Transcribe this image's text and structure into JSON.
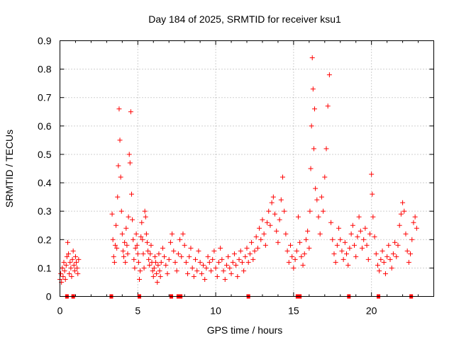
{
  "chart_data": {
    "type": "scatter",
    "title": "Day 184 of 2025, SRMTID for receiver ksu1",
    "xlabel": "GPS time / hours",
    "ylabel": "SRMTID / TECUs",
    "xlim": [
      0,
      24
    ],
    "ylim": [
      0,
      0.9
    ],
    "grid": true,
    "marker": "+",
    "color": "#ff0000",
    "x_ticks": [
      0,
      5,
      10,
      15,
      20
    ],
    "x_tick_labels": [
      "0",
      "5",
      "10",
      "15",
      "20"
    ],
    "y_ticks": [
      0,
      0.1,
      0.2,
      0.3,
      0.4,
      0.5,
      0.6,
      0.7,
      0.8,
      0.9
    ],
    "y_tick_labels": [
      "0",
      "0.1",
      "0.2",
      "0.3",
      "0.4",
      "0.5",
      "0.6",
      "0.7",
      "0.8",
      "0.9"
    ],
    "series": [
      {
        "name": "SRMTID",
        "points": [
          [
            0.0,
            0.06
          ],
          [
            0.05,
            0.08
          ],
          [
            0.1,
            0.05
          ],
          [
            0.15,
            0.1
          ],
          [
            0.2,
            0.07
          ],
          [
            0.25,
            0.12
          ],
          [
            0.3,
            0.09
          ],
          [
            0.35,
            0.06
          ],
          [
            0.4,
            0.11
          ],
          [
            0.45,
            0.14
          ],
          [
            0.5,
            0.19
          ],
          [
            0.55,
            0.15
          ],
          [
            0.6,
            0.08
          ],
          [
            0.65,
            0.12
          ],
          [
            0.7,
            0.1
          ],
          [
            0.75,
            0.07
          ],
          [
            0.8,
            0.13
          ],
          [
            0.85,
            0.16
          ],
          [
            0.9,
            0.11
          ],
          [
            0.95,
            0.09
          ],
          [
            1.0,
            0.14
          ],
          [
            1.05,
            0.12
          ],
          [
            1.1,
            0.1
          ],
          [
            1.15,
            0.08
          ],
          [
            1.2,
            0.13
          ],
          [
            3.35,
            0.29
          ],
          [
            3.4,
            0.2
          ],
          [
            3.45,
            0.14
          ],
          [
            3.5,
            0.12
          ],
          [
            3.55,
            0.18
          ],
          [
            3.6,
            0.25
          ],
          [
            3.65,
            0.17
          ],
          [
            3.7,
            0.35
          ],
          [
            3.75,
            0.46
          ],
          [
            3.8,
            0.66
          ],
          [
            3.85,
            0.55
          ],
          [
            3.9,
            0.42
          ],
          [
            3.95,
            0.3
          ],
          [
            4.0,
            0.22
          ],
          [
            4.05,
            0.16
          ],
          [
            4.1,
            0.14
          ],
          [
            4.15,
            0.19
          ],
          [
            4.2,
            0.12
          ],
          [
            4.25,
            0.24
          ],
          [
            4.3,
            0.18
          ],
          [
            4.35,
            0.15
          ],
          [
            4.4,
            0.28
          ],
          [
            4.45,
            0.5
          ],
          [
            4.5,
            0.47
          ],
          [
            4.55,
            0.65
          ],
          [
            4.6,
            0.36
          ],
          [
            4.65,
            0.27
          ],
          [
            4.7,
            0.2
          ],
          [
            4.75,
            0.13
          ],
          [
            4.8,
            0.1
          ],
          [
            4.85,
            0.17
          ],
          [
            4.9,
            0.22
          ],
          [
            4.95,
            0.18
          ],
          [
            5.0,
            0.15
          ],
          [
            5.05,
            0.12
          ],
          [
            5.1,
            0.06
          ],
          [
            5.15,
            0.09
          ],
          [
            5.2,
            0.21
          ],
          [
            5.25,
            0.26
          ],
          [
            5.3,
            0.2
          ],
          [
            5.35,
            0.15
          ],
          [
            5.4,
            0.1
          ],
          [
            5.45,
            0.3
          ],
          [
            5.5,
            0.28
          ],
          [
            5.55,
            0.22
          ],
          [
            5.6,
            0.19
          ],
          [
            5.65,
            0.16
          ],
          [
            5.7,
            0.13
          ],
          [
            5.75,
            0.11
          ],
          [
            5.8,
            0.15
          ],
          [
            5.85,
            0.18
          ],
          [
            5.9,
            0.12
          ],
          [
            5.95,
            0.09
          ],
          [
            6.0,
            0.07
          ],
          [
            6.05,
            0.1
          ],
          [
            6.1,
            0.14
          ],
          [
            6.15,
            0.12
          ],
          [
            6.2,
            0.08
          ],
          [
            6.25,
            0.05
          ],
          [
            6.3,
            0.11
          ],
          [
            6.35,
            0.15
          ],
          [
            6.4,
            0.09
          ],
          [
            6.45,
            0.07
          ],
          [
            6.5,
            0.12
          ],
          [
            6.6,
            0.17
          ],
          [
            6.7,
            0.14
          ],
          [
            6.8,
            0.11
          ],
          [
            6.9,
            0.08
          ],
          [
            7.0,
            0.13
          ],
          [
            7.1,
            0.19
          ],
          [
            7.2,
            0.22
          ],
          [
            7.3,
            0.16
          ],
          [
            7.4,
            0.12
          ],
          [
            7.5,
            0.09
          ],
          [
            7.6,
            0.15
          ],
          [
            7.7,
            0.2
          ],
          [
            7.8,
            0.14
          ],
          [
            7.9,
            0.22
          ],
          [
            8.0,
            0.18
          ],
          [
            8.1,
            0.12
          ],
          [
            8.2,
            0.08
          ],
          [
            8.3,
            0.14
          ],
          [
            8.4,
            0.17
          ],
          [
            8.5,
            0.1
          ],
          [
            8.6,
            0.07
          ],
          [
            8.7,
            0.13
          ],
          [
            8.8,
            0.09
          ],
          [
            8.9,
            0.16
          ],
          [
            9.0,
            0.12
          ],
          [
            9.1,
            0.08
          ],
          [
            9.2,
            0.11
          ],
          [
            9.3,
            0.06
          ],
          [
            9.4,
            0.1
          ],
          [
            9.5,
            0.14
          ],
          [
            9.6,
            0.12
          ],
          [
            9.7,
            0.09
          ],
          [
            9.8,
            0.13
          ],
          [
            9.9,
            0.16
          ],
          [
            10.0,
            0.1
          ],
          [
            10.1,
            0.07
          ],
          [
            10.2,
            0.12
          ],
          [
            10.3,
            0.17
          ],
          [
            10.4,
            0.13
          ],
          [
            10.5,
            0.09
          ],
          [
            10.6,
            0.06
          ],
          [
            10.7,
            0.11
          ],
          [
            10.8,
            0.14
          ],
          [
            10.9,
            0.1
          ],
          [
            11.0,
            0.08
          ],
          [
            11.1,
            0.12
          ],
          [
            11.2,
            0.15
          ],
          [
            11.3,
            0.11
          ],
          [
            11.4,
            0.07
          ],
          [
            11.5,
            0.13
          ],
          [
            11.6,
            0.16
          ],
          [
            11.7,
            0.12
          ],
          [
            11.8,
            0.09
          ],
          [
            11.9,
            0.14
          ],
          [
            12.0,
            0.17
          ],
          [
            12.1,
            0.12
          ],
          [
            12.2,
            0.15
          ],
          [
            12.3,
            0.19
          ],
          [
            12.4,
            0.13
          ],
          [
            12.5,
            0.16
          ],
          [
            12.6,
            0.21
          ],
          [
            12.7,
            0.17
          ],
          [
            12.8,
            0.24
          ],
          [
            12.9,
            0.2
          ],
          [
            13.0,
            0.27
          ],
          [
            13.1,
            0.22
          ],
          [
            13.2,
            0.18
          ],
          [
            13.3,
            0.26
          ],
          [
            13.4,
            0.3
          ],
          [
            13.5,
            0.25
          ],
          [
            13.6,
            0.33
          ],
          [
            13.7,
            0.35
          ],
          [
            13.8,
            0.29
          ],
          [
            13.9,
            0.23
          ],
          [
            14.0,
            0.19
          ],
          [
            14.1,
            0.27
          ],
          [
            14.2,
            0.34
          ],
          [
            14.3,
            0.42
          ],
          [
            14.4,
            0.3
          ],
          [
            14.5,
            0.22
          ],
          [
            14.6,
            0.16
          ],
          [
            14.7,
            0.12
          ],
          [
            14.8,
            0.18
          ],
          [
            14.9,
            0.14
          ],
          [
            15.0,
            0.1
          ],
          [
            15.1,
            0.13
          ],
          [
            15.2,
            0.16
          ],
          [
            15.3,
            0.28
          ],
          [
            15.4,
            0.19
          ],
          [
            15.5,
            0.14
          ],
          [
            15.6,
            0.11
          ],
          [
            15.7,
            0.15
          ],
          [
            15.8,
            0.2
          ],
          [
            15.9,
            0.23
          ],
          [
            16.0,
            0.17
          ],
          [
            16.05,
            0.3
          ],
          [
            16.1,
            0.45
          ],
          [
            16.15,
            0.6
          ],
          [
            16.2,
            0.84
          ],
          [
            16.25,
            0.73
          ],
          [
            16.3,
            0.52
          ],
          [
            16.35,
            0.66
          ],
          [
            16.4,
            0.38
          ],
          [
            16.5,
            0.34
          ],
          [
            16.6,
            0.28
          ],
          [
            16.7,
            0.22
          ],
          [
            16.8,
            0.35
          ],
          [
            16.9,
            0.3
          ],
          [
            17.0,
            0.42
          ],
          [
            17.1,
            0.52
          ],
          [
            17.2,
            0.67
          ],
          [
            17.3,
            0.78
          ],
          [
            17.4,
            0.26
          ],
          [
            17.5,
            0.2
          ],
          [
            17.6,
            0.15
          ],
          [
            17.7,
            0.12
          ],
          [
            17.8,
            0.18
          ],
          [
            17.9,
            0.24
          ],
          [
            18.0,
            0.2
          ],
          [
            18.1,
            0.16
          ],
          [
            18.2,
            0.13
          ],
          [
            18.3,
            0.19
          ],
          [
            18.4,
            0.15
          ],
          [
            18.5,
            0.11
          ],
          [
            18.6,
            0.17
          ],
          [
            18.7,
            0.22
          ],
          [
            18.8,
            0.25
          ],
          [
            18.9,
            0.18
          ],
          [
            19.0,
            0.14
          ],
          [
            19.1,
            0.21
          ],
          [
            19.2,
            0.28
          ],
          [
            19.3,
            0.23
          ],
          [
            19.4,
            0.17
          ],
          [
            19.5,
            0.2
          ],
          [
            19.6,
            0.24
          ],
          [
            19.7,
            0.18
          ],
          [
            19.8,
            0.13
          ],
          [
            19.9,
            0.22
          ],
          [
            20.0,
            0.43
          ],
          [
            20.05,
            0.36
          ],
          [
            20.1,
            0.28
          ],
          [
            20.2,
            0.21
          ],
          [
            20.3,
            0.15
          ],
          [
            20.4,
            0.11
          ],
          [
            20.5,
            0.09
          ],
          [
            20.6,
            0.13
          ],
          [
            20.7,
            0.16
          ],
          [
            20.8,
            0.12
          ],
          [
            20.9,
            0.08
          ],
          [
            21.0,
            0.14
          ],
          [
            21.1,
            0.18
          ],
          [
            21.2,
            0.13
          ],
          [
            21.3,
            0.1
          ],
          [
            21.4,
            0.15
          ],
          [
            21.5,
            0.19
          ],
          [
            21.6,
            0.14
          ],
          [
            21.7,
            0.18
          ],
          [
            21.8,
            0.25
          ],
          [
            21.9,
            0.29
          ],
          [
            22.0,
            0.33
          ],
          [
            22.1,
            0.3
          ],
          [
            22.2,
            0.22
          ],
          [
            22.3,
            0.16
          ],
          [
            22.4,
            0.12
          ],
          [
            22.5,
            0.15
          ],
          [
            22.6,
            0.2
          ],
          [
            22.7,
            0.26
          ],
          [
            22.8,
            0.28
          ],
          [
            22.9,
            0.24
          ]
        ]
      }
    ],
    "gap_markers_x": [
      0.45,
      0.85,
      3.3,
      5.1,
      7.15,
      7.6,
      7.75,
      12.1,
      15.25,
      15.4,
      18.55,
      20.45,
      22.55
    ]
  }
}
